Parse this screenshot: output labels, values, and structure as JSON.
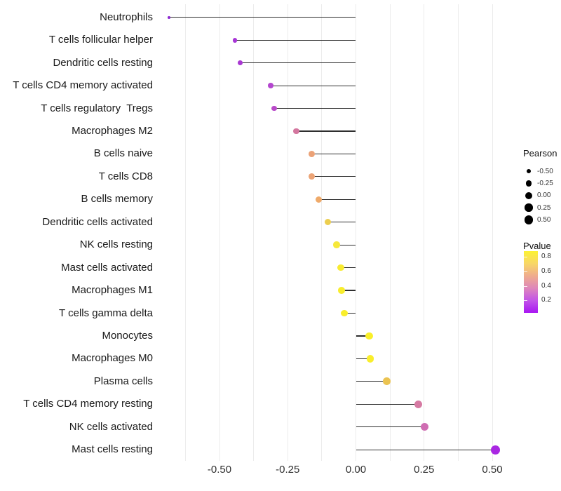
{
  "chart_data": {
    "type": "scatter",
    "variant": "lollipop",
    "orientation": "horizontal",
    "title": "",
    "xlabel": "",
    "ylabel": "",
    "xlim": [
      -0.74,
      0.585
    ],
    "grid": {
      "vertical_step": 0.125,
      "color": "#ececec",
      "range": [
        -0.625,
        0.5
      ]
    },
    "x_ticks": [
      {
        "value": -0.5,
        "label": "-0.50"
      },
      {
        "value": -0.25,
        "label": "-0.25"
      },
      {
        "value": 0,
        "label": "0.00"
      },
      {
        "value": 0.25,
        "label": "0.25"
      },
      {
        "value": 0.5,
        "label": "0.50"
      }
    ],
    "stem": {
      "color": "#2e2e2e",
      "baseline_value": 0
    },
    "points": [
      {
        "label": "Neutrophils",
        "pearson": -0.685,
        "dot_color": "#8e2bd2"
      },
      {
        "label": "T cells follicular helper",
        "pearson": -0.443,
        "dot_color": "#a735d6"
      },
      {
        "label": "Dendritic cells resting",
        "pearson": -0.424,
        "dot_color": "#a938d2"
      },
      {
        "label": "T cells CD4 memory activated",
        "pearson": -0.313,
        "dot_color": "#b446cf"
      },
      {
        "label": "T cells regulatory  Tregs",
        "pearson": -0.3,
        "dot_color": "#b94bc9"
      },
      {
        "label": "Macrophages M2",
        "pearson": -0.219,
        "dot_color": "#d4779f"
      },
      {
        "label": "B cells naive",
        "pearson": -0.162,
        "dot_color": "#eba277"
      },
      {
        "label": "T cells CD8",
        "pearson": -0.161,
        "dot_color": "#eca476"
      },
      {
        "label": "B cells memory",
        "pearson": -0.137,
        "dot_color": "#efaa6a"
      },
      {
        "label": "Dendritic cells activated",
        "pearson": -0.103,
        "dot_color": "#ecce4f"
      },
      {
        "label": "NK cells resting",
        "pearson": -0.071,
        "dot_color": "#f6e83a"
      },
      {
        "label": "Mast cells activated",
        "pearson": -0.056,
        "dot_color": "#f8eb31"
      },
      {
        "label": "Macrophages M1",
        "pearson": -0.052,
        "dot_color": "#f8ed2d"
      },
      {
        "label": "T cells gamma delta",
        "pearson": -0.043,
        "dot_color": "#f9ee2b"
      },
      {
        "label": "Monocytes",
        "pearson": 0.049,
        "dot_color": "#f9ef29"
      },
      {
        "label": "Macrophages M0",
        "pearson": 0.052,
        "dot_color": "#f9ee2c"
      },
      {
        "label": "Plasma cells",
        "pearson": 0.114,
        "dot_color": "#ebc351"
      },
      {
        "label": "T cells CD4 memory resting",
        "pearson": 0.229,
        "dot_color": "#d67aa3"
      },
      {
        "label": "NK cells activated",
        "pearson": 0.252,
        "dot_color": "#cf6db2"
      },
      {
        "label": "Mast cells resting",
        "pearson": 0.512,
        "dot_color": "#a927e2"
      }
    ],
    "legends": {
      "size": {
        "title": "Pearson",
        "dot_color": "#000000",
        "entries": [
          {
            "value": -0.5,
            "label": "-0.50"
          },
          {
            "value": -0.25,
            "label": "-0.25"
          },
          {
            "value": 0,
            "label": "0.00"
          },
          {
            "value": 0.25,
            "label": "0.25"
          },
          {
            "value": 0.5,
            "label": "0.50"
          }
        ]
      },
      "color": {
        "title": "Pvalue",
        "domain": [
          0.03,
          0.88
        ],
        "ticks": [
          {
            "value": 0.8,
            "label": "0.8"
          },
          {
            "value": 0.6,
            "label": "0.6"
          },
          {
            "value": 0.4,
            "label": "0.4"
          },
          {
            "value": 0.2,
            "label": "0.2"
          }
        ],
        "gradient_top_to_bottom": [
          "#fcf234",
          "#f8d767",
          "#efac8d",
          "#de87bb",
          "#c254e8",
          "#a816f2"
        ]
      }
    }
  }
}
